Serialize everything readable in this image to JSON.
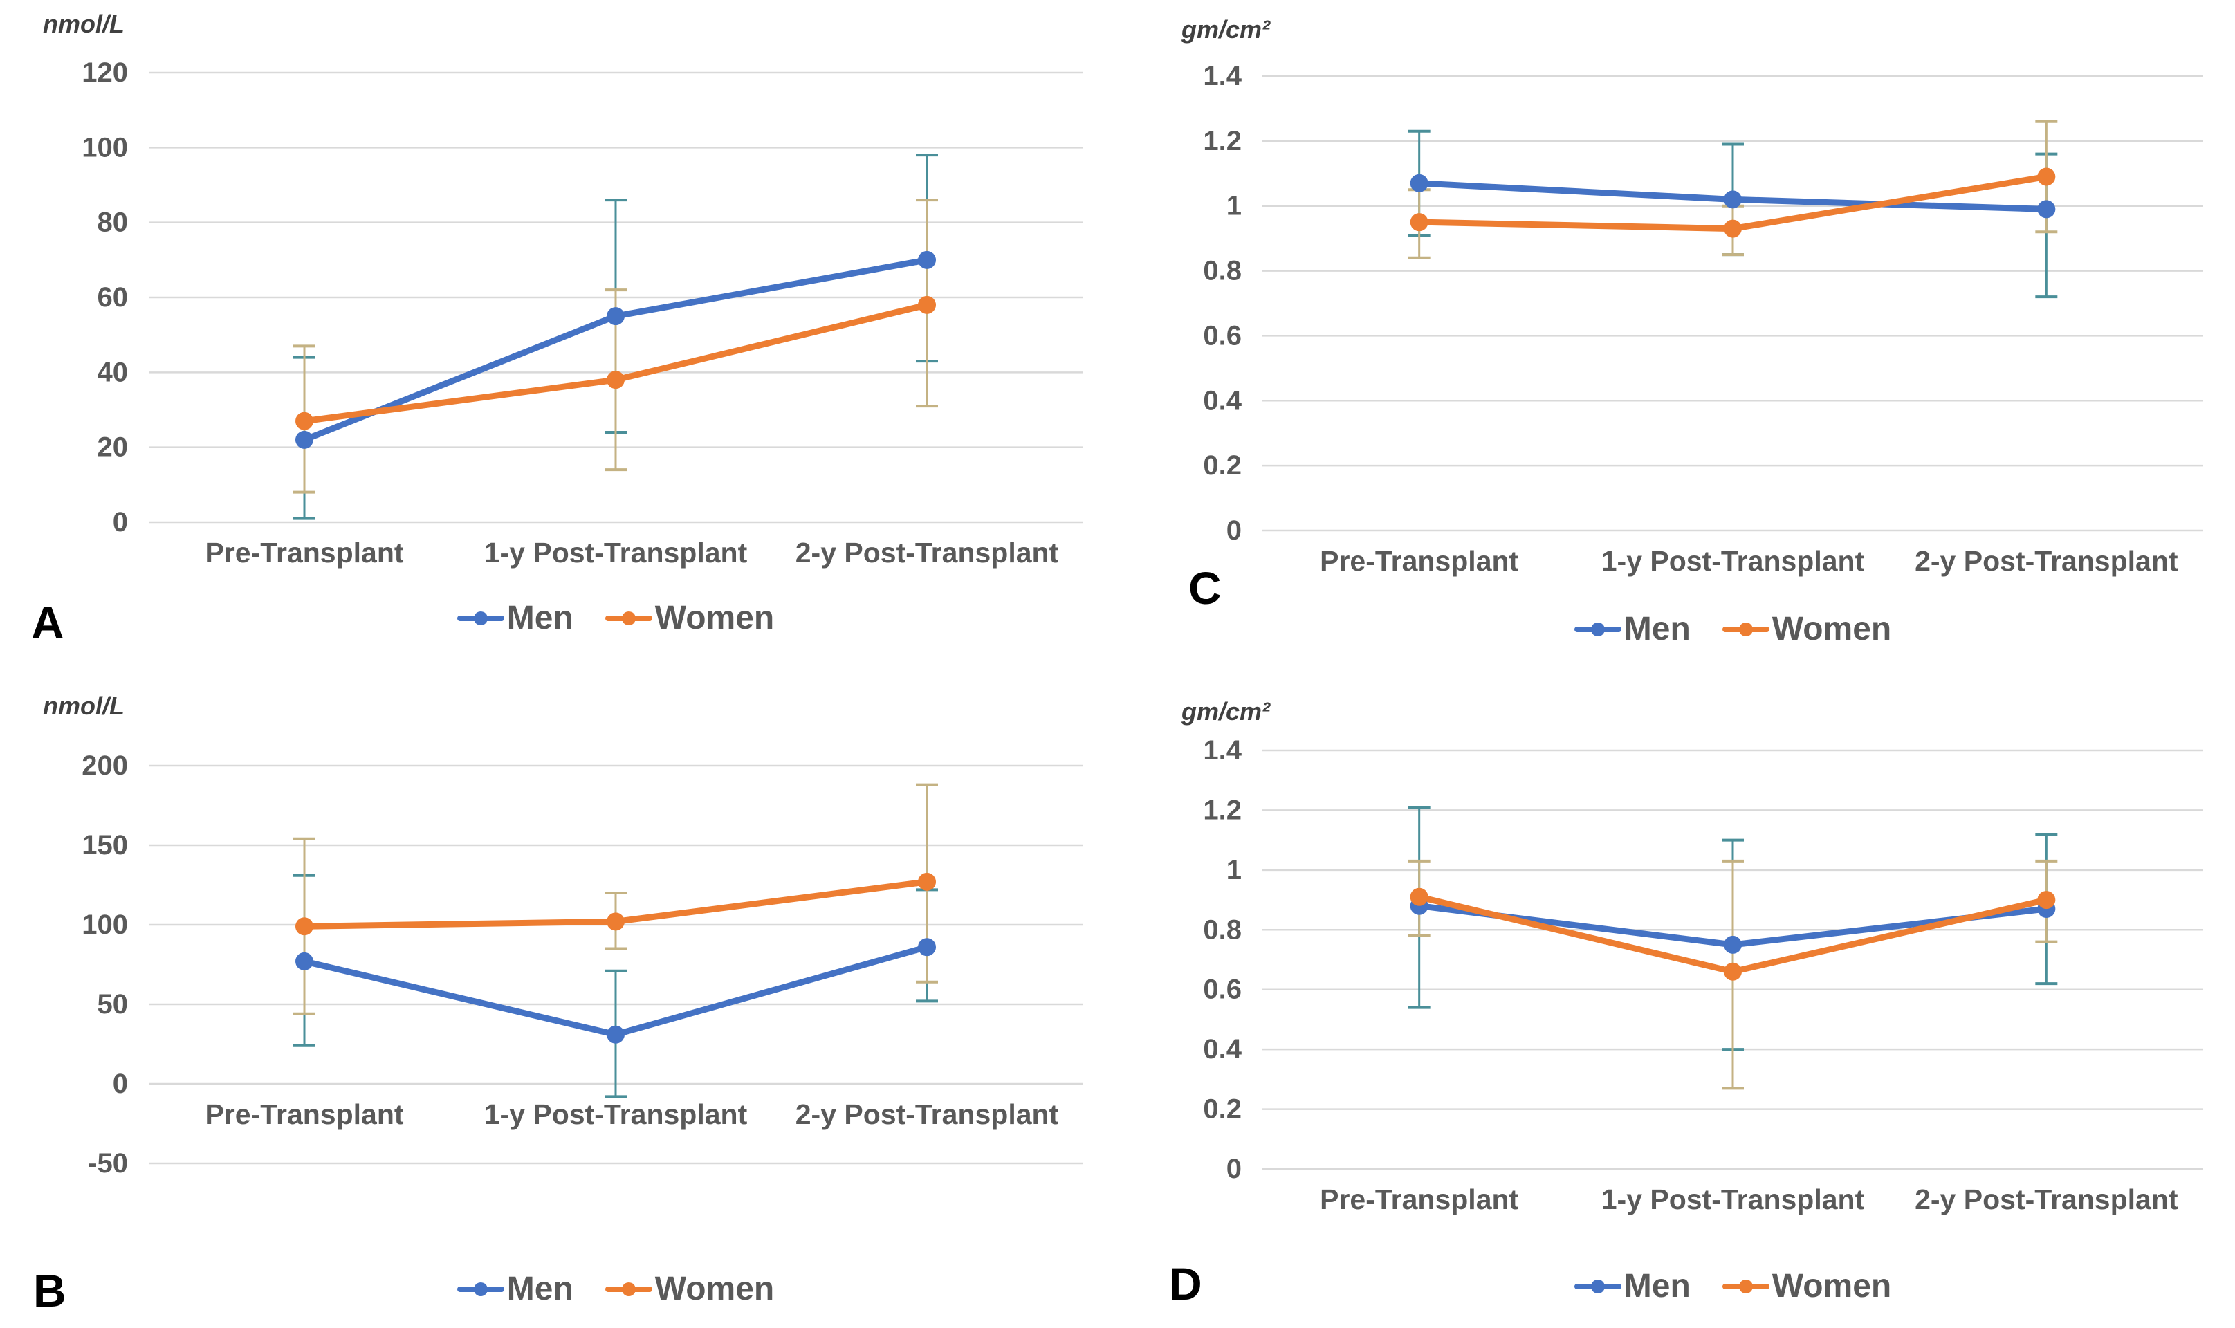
{
  "page": {
    "background": "#FFFFFF"
  },
  "colors": {
    "men": "#4472C4",
    "women": "#ED7D31",
    "men_error": "#4A8F99",
    "women_error": "#C4B283",
    "grid": "#D9D9D9",
    "text": "#595959",
    "letter": "#000000"
  },
  "chart_data": [
    {
      "id": "A",
      "letter": "A",
      "type": "line",
      "error_bars": true,
      "grid": true,
      "legend_position": "bottom",
      "ylabel": "nmol/L",
      "ylim": [
        0,
        120
      ],
      "ystep": 20,
      "yticks": [
        "120",
        "100",
        "80",
        "60",
        "40",
        "20",
        "0"
      ],
      "categories": [
        "Pre-Transplant",
        "1-y Post-Transplant",
        "2-y Post-Transplant"
      ],
      "series": [
        {
          "name": "Men",
          "values": [
            22,
            55,
            70
          ],
          "err_low": [
            1,
            24,
            43
          ],
          "err_high": [
            44,
            86,
            98
          ]
        },
        {
          "name": "Women",
          "values": [
            27,
            38,
            58
          ],
          "err_low": [
            8,
            14,
            31
          ],
          "err_high": [
            47,
            62,
            86
          ]
        }
      ]
    },
    {
      "id": "B",
      "letter": "B",
      "type": "line",
      "error_bars": true,
      "grid": true,
      "legend_position": "bottom",
      "ylabel": "nmol/L",
      "ylim": [
        -50,
        200
      ],
      "ystep": 50,
      "yticks": [
        "200",
        "150",
        "100",
        "50",
        "0",
        "-50"
      ],
      "categories": [
        "Pre-Transplant",
        "1-y Post-Transplant",
        "2-y Post-Transplant"
      ],
      "series": [
        {
          "name": "Men",
          "values": [
            77,
            31,
            86
          ],
          "err_low": [
            24,
            -8,
            52
          ],
          "err_high": [
            131,
            71,
            122
          ]
        },
        {
          "name": "Women",
          "values": [
            99,
            102,
            127
          ],
          "err_low": [
            44,
            85,
            64
          ],
          "err_high": [
            154,
            120,
            188
          ]
        }
      ]
    },
    {
      "id": "C",
      "letter": "C",
      "type": "line",
      "error_bars": true,
      "grid": true,
      "legend_position": "bottom",
      "ylabel": "gm/cm²",
      "ylim": [
        0,
        1.4
      ],
      "ystep": 0.2,
      "yticks": [
        "1.4",
        "1.2",
        "1",
        "0.8",
        "0.6",
        "0.4",
        "0.2",
        "0"
      ],
      "categories": [
        "Pre-Transplant",
        "1-y Post-Transplant",
        "2-y Post-Transplant"
      ],
      "series": [
        {
          "name": "Men",
          "values": [
            1.07,
            1.02,
            0.99
          ],
          "err_low": [
            0.91,
            0.85,
            0.72
          ],
          "err_high": [
            1.23,
            1.19,
            1.16
          ]
        },
        {
          "name": "Women",
          "values": [
            0.95,
            0.93,
            1.09
          ],
          "err_low": [
            0.84,
            0.85,
            0.92
          ],
          "err_high": [
            1.05,
            1.0,
            1.26
          ]
        }
      ]
    },
    {
      "id": "D",
      "letter": "D",
      "type": "line",
      "error_bars": true,
      "grid": true,
      "legend_position": "bottom",
      "ylabel": "gm/cm²",
      "ylim": [
        0,
        1.4
      ],
      "ystep": 0.2,
      "yticks": [
        "1.4",
        "1.2",
        "1",
        "0.8",
        "0.6",
        "0.4",
        "0.2",
        "0"
      ],
      "categories": [
        "Pre-Transplant",
        "1-y Post-Transplant",
        "2-y Post-Transplant"
      ],
      "series": [
        {
          "name": "Men",
          "values": [
            0.88,
            0.75,
            0.87
          ],
          "err_low": [
            0.54,
            0.4,
            0.62
          ],
          "err_high": [
            1.21,
            1.1,
            1.12
          ]
        },
        {
          "name": "Women",
          "values": [
            0.91,
            0.66,
            0.9
          ],
          "err_low": [
            0.78,
            0.27,
            0.76
          ],
          "err_high": [
            1.03,
            1.03,
            1.03
          ]
        }
      ]
    }
  ]
}
